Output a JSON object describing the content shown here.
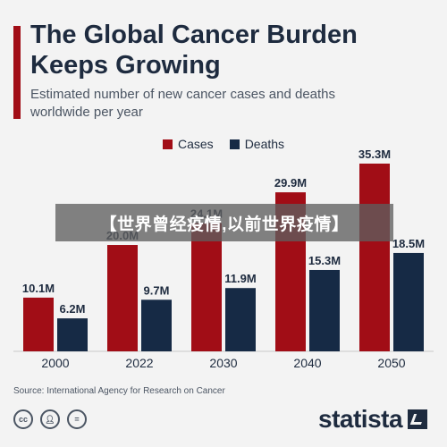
{
  "title": "The Global Cancer Burden Keeps Growing",
  "subtitle": "Estimated number of new cancer cases and deaths worldwide per year",
  "legend": {
    "cases": "Cases",
    "deaths": "Deaths"
  },
  "colors": {
    "cases": "#a10d16",
    "deaths": "#162a45",
    "accent": "#a10d16",
    "text": "#1e2b3f"
  },
  "source": "Source: International Agency for Research on Cancer",
  "license_icons": [
    "cc-icon",
    "by-icon",
    "nd-icon"
  ],
  "brand": "statista",
  "watermark": "【世界曾经疫情,以前世界疫情】",
  "chart_data": {
    "type": "bar",
    "categories": [
      "2000",
      "2022",
      "2030",
      "2040",
      "2050"
    ],
    "series": [
      {
        "name": "Cases",
        "values": [
          10.1,
          20.0,
          24.1,
          29.9,
          35.3
        ],
        "labels": [
          "10.1M",
          "20.0M",
          "24.1M",
          "29.9M",
          "35.3M"
        ]
      },
      {
        "name": "Deaths",
        "values": [
          6.2,
          9.7,
          11.9,
          15.3,
          18.5
        ],
        "labels": [
          "6.2M",
          "9.7M",
          "11.9M",
          "15.3M",
          "18.5M"
        ]
      }
    ],
    "ylim": [
      0,
      35.3
    ],
    "grid": false,
    "legend_position": "top"
  }
}
